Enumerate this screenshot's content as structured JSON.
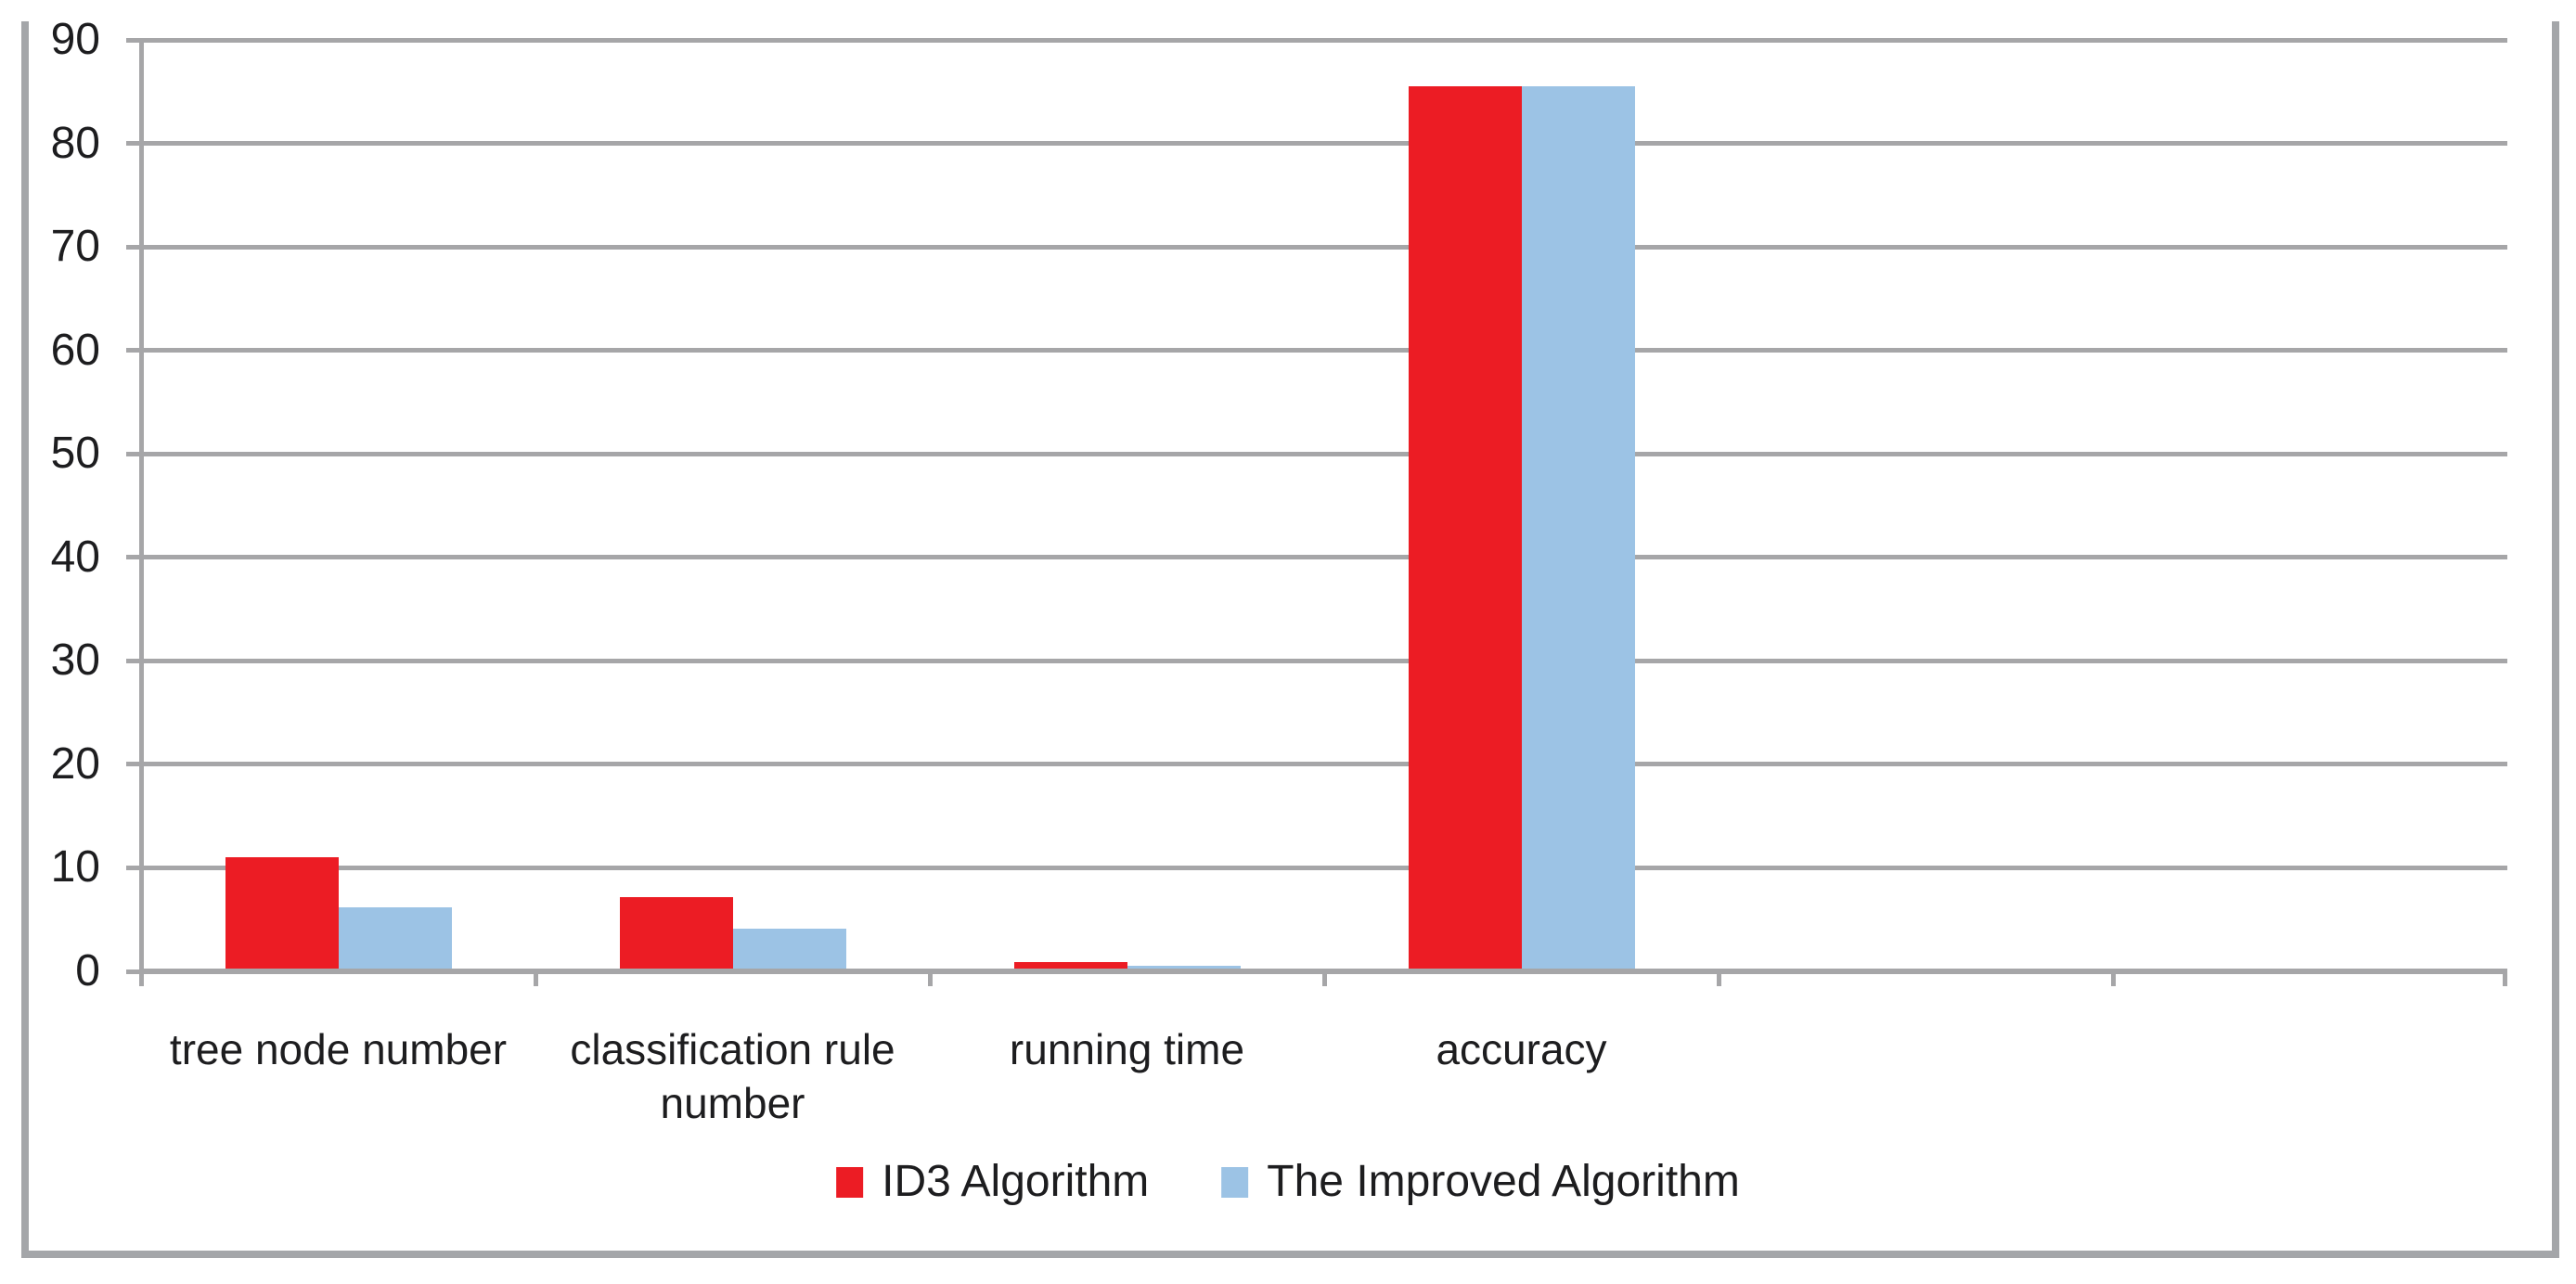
{
  "chart_data": {
    "type": "bar",
    "title": "",
    "categories": [
      "tree node number",
      "classification rule number",
      "running time",
      "accuracy"
    ],
    "series": [
      {
        "name": "ID3 Algorithm",
        "color": "#ec1c24",
        "values": [
          11,
          7.2,
          0.9,
          85.5
        ]
      },
      {
        "name": "The Improved Algorithm",
        "color": "#9cc3e5",
        "values": [
          6.2,
          4.1,
          0.5,
          85.5
        ]
      }
    ],
    "ylim": [
      0,
      90
    ],
    "ytick_step": 10,
    "yticks": [
      "90",
      "80",
      "70",
      "60",
      "50",
      "40",
      "30",
      "20",
      "10",
      "0"
    ],
    "x_slots_total": 6,
    "x_slots_labeled": 4,
    "grid": "horizontal gridlines on",
    "legend_position": "bottom center",
    "gridline_color": "#a6a6a8",
    "frame_color": "#a4a6a9",
    "text_color": "#1d1d1f",
    "background_color": "#ffffff"
  }
}
